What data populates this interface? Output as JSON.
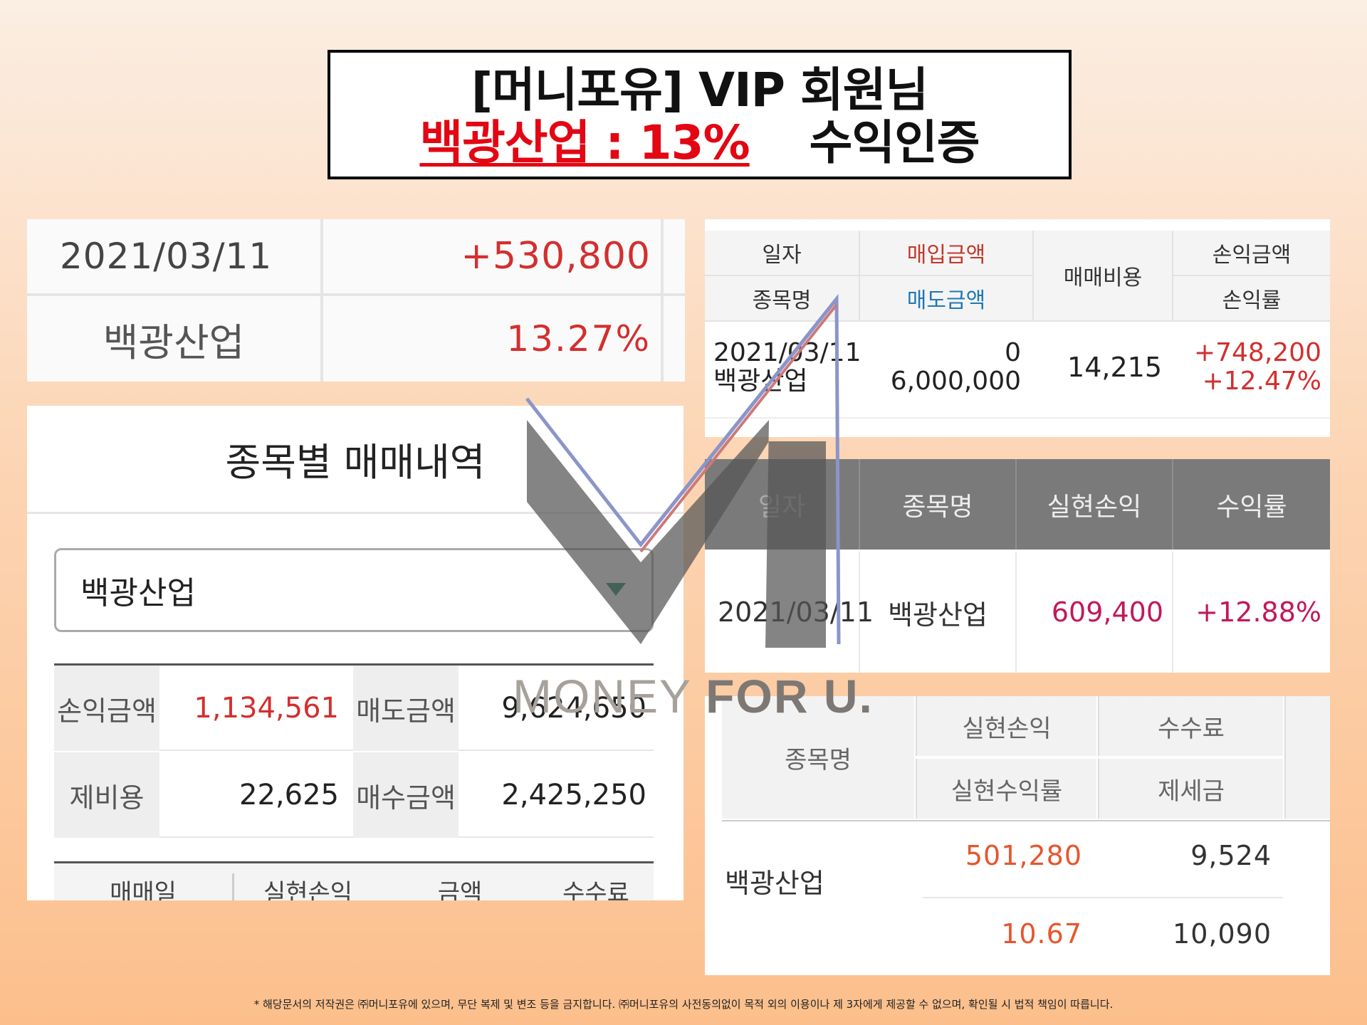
{
  "title": {
    "line1": "[머니포유] VIP 회원님",
    "highlight": "백광산업 : 13%",
    "suffix": "수익인증"
  },
  "panel_a": {
    "date": "2021/03/11",
    "profit": "+530,800",
    "stock": "백광산업",
    "rate": "13.27%"
  },
  "panel_b": {
    "header": "종목별 매매내역",
    "select_value": "백광산업",
    "summary": {
      "pl_label": "손익금액",
      "pl_value": "1,134,561",
      "sell_label": "매도금액",
      "sell_value": "9,624,650",
      "fee_label": "제비용",
      "fee_value": "22,625",
      "buy_label": "매수금액",
      "buy_value": "2,425,250"
    },
    "tabs": [
      "매매일",
      "실현손익",
      "금액",
      "수수료"
    ]
  },
  "panel_c": {
    "headers": {
      "date": "일자",
      "buy_amount": "매입금액",
      "trade_cost": "매매비용",
      "pl_amount": "손익금액",
      "stock": "종목명",
      "sell_amount": "매도금액",
      "pl_rate": "손익률"
    },
    "row": {
      "date": "2021/03/11",
      "stock": "백광산업",
      "buy": "0",
      "sell": "6,000,000",
      "cost": "14,215",
      "pl": "+748,200",
      "rate": "+12.47%"
    }
  },
  "panel_d": {
    "headers": [
      "일자",
      "종목명",
      "실현손익",
      "수익률"
    ],
    "row": {
      "date": "2021/03/11",
      "stock": "백광산업",
      "realized": "609,400",
      "rate": "+12.88%"
    }
  },
  "panel_e": {
    "headers": {
      "stock": "종목명",
      "realized": "실현손익",
      "fee": "수수료",
      "realized_rate": "실현수익률",
      "tax": "제세금"
    },
    "row": {
      "stock": "백광산업",
      "realized": "501,280",
      "fee": "9,524",
      "rate": "10.67",
      "tax": "10,090"
    }
  },
  "watermark": {
    "part1": "MONEY ",
    "part2": "FOR U."
  },
  "footer": "* 해당문서의 저작권은 ㈜머니포유에 있으며, 무단 복제 및 변조 등을 금지합니다. ㈜머니포유의 사전동의없이 목적 외의 이용이나 제 3자에게 제공할 수 없으며, 확인될 시 법적 책임이 따릅니다.",
  "colors": {
    "red": "#e30613",
    "profit_red": "#d32f2f",
    "pink": "#c2185b",
    "blue": "#1f78b4",
    "accent_green": "#1d7f5a"
  }
}
